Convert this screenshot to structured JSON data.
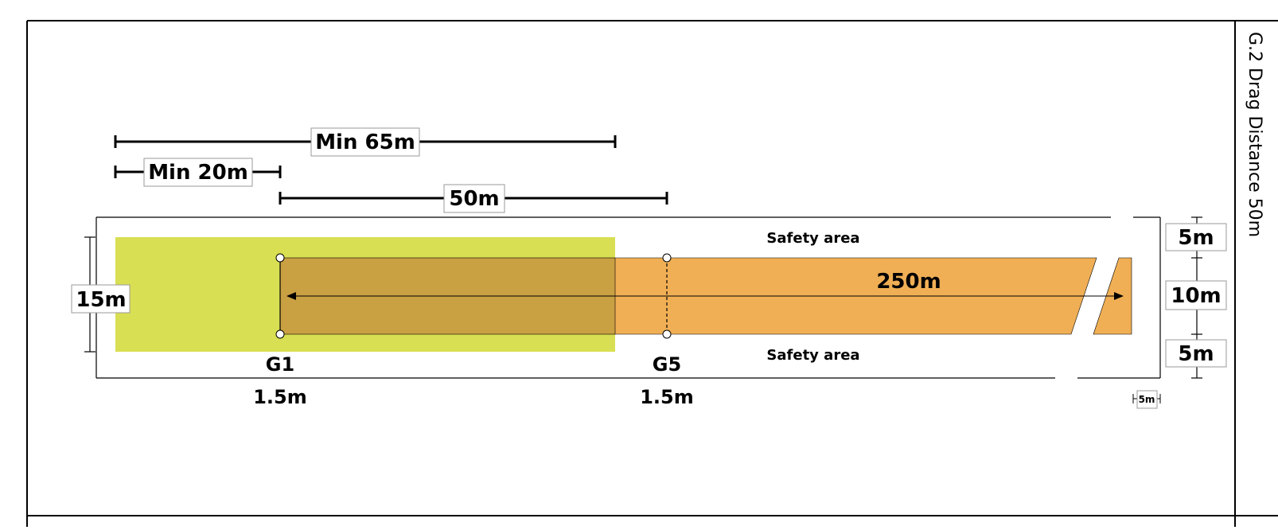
{
  "diagram": {
    "title": "G.2 Drag Distance 50m",
    "dimensions": {
      "min_65": "Min 65m",
      "min_20": "Min 20m",
      "span_50": "50m",
      "run_250": "250m",
      "width_15": "15m",
      "safety_top_width": "5m",
      "lane_width": "10m",
      "safety_bottom_width": "5m",
      "end_margin": "5m"
    },
    "labels": {
      "safety_top": "Safety area",
      "safety_bottom": "Safety area",
      "gate_1": "G1",
      "gate_5": "G5",
      "gate_1_height": "1.5m",
      "gate_5_height": "1.5m"
    },
    "colors": {
      "zone": "#d9df52",
      "lane": "#f0af55",
      "overlap": "#c9a042",
      "line": "#000000"
    }
  }
}
